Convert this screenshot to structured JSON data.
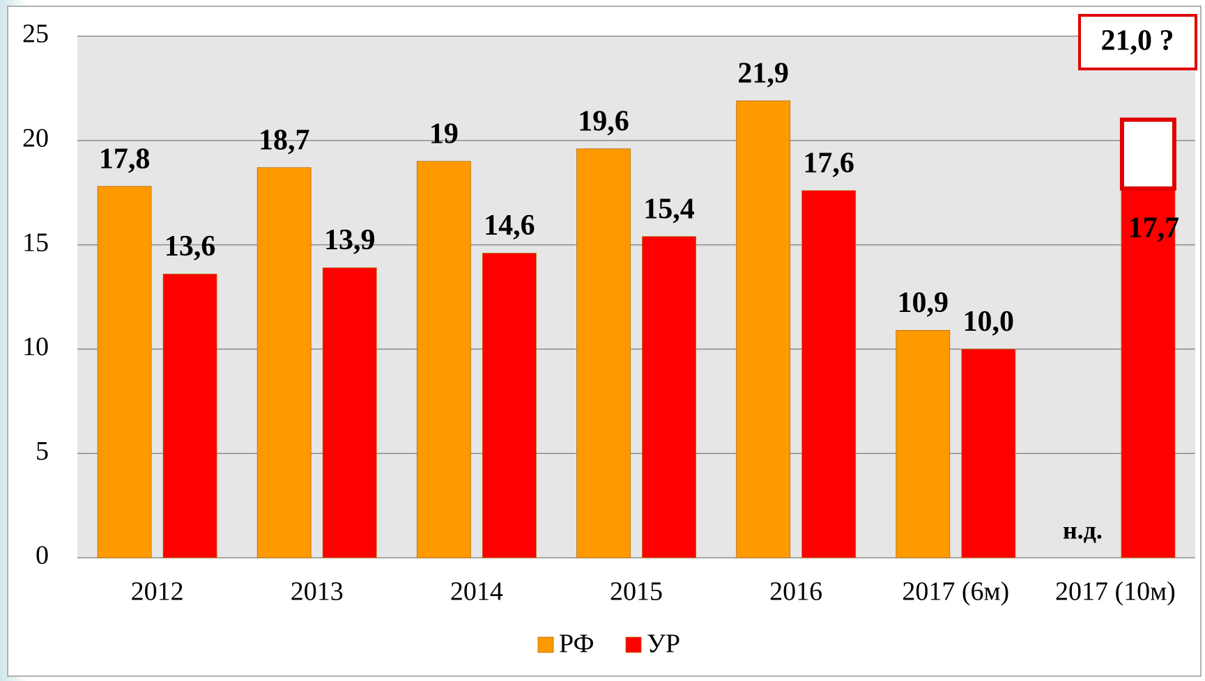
{
  "chart_data": {
    "type": "bar",
    "categories": [
      "2012",
      "2013",
      "2014",
      "2015",
      "2016",
      "2017 (6м)",
      "2017 (10м)"
    ],
    "series": [
      {
        "name": "РФ",
        "color": "#ff9900",
        "values": [
          17.8,
          18.7,
          19,
          19.6,
          21.9,
          10.9,
          null
        ],
        "value_labels": [
          "17,8",
          "18,7",
          "19",
          "19,6",
          "21,9",
          "10,9",
          "н.д."
        ]
      },
      {
        "name": "УР",
        "color": "#ff0000",
        "values": [
          13.6,
          13.9,
          14.6,
          15.4,
          17.6,
          10.0,
          17.7
        ],
        "value_labels": [
          "13,6",
          "13,9",
          "14,6",
          "15,4",
          "17,6",
          "10,0",
          "17,7"
        ]
      }
    ],
    "annotation": {
      "value": 21.0,
      "label": "21,0 ?"
    },
    "ylim": [
      0,
      25
    ],
    "yticks": [
      0,
      5,
      10,
      15,
      20,
      25
    ],
    "grid": true,
    "legend": "bottom"
  }
}
